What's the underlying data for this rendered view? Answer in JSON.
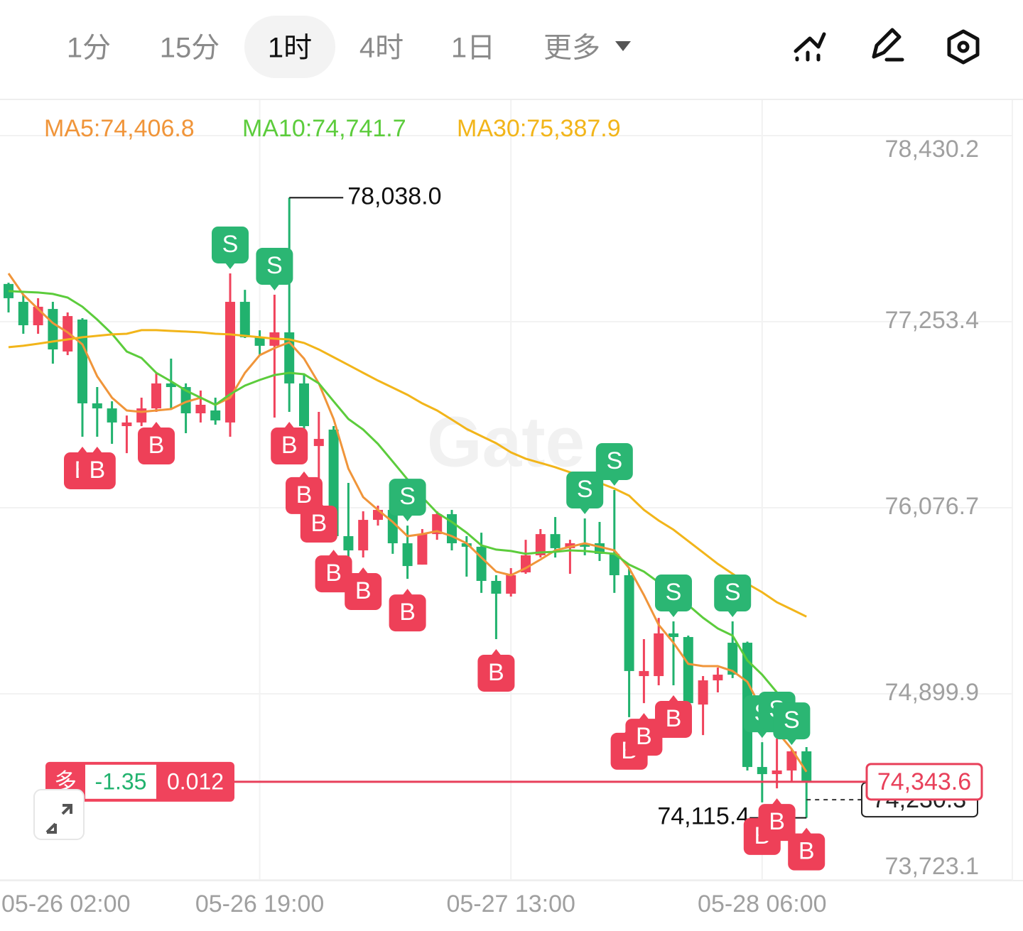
{
  "tabs": [
    "1分",
    "15分",
    "1时",
    "4时",
    "1日",
    "更多"
  ],
  "active_tab": 2,
  "chart_data": {
    "type": "candlestick",
    "categories": [
      "05-26 02:00",
      null,
      null,
      null,
      null,
      null,
      null,
      null,
      null,
      null,
      null,
      null,
      null,
      null,
      null,
      null,
      null,
      "05-26 19:00",
      null,
      null,
      null,
      null,
      null,
      null,
      null,
      null,
      null,
      null,
      null,
      null,
      null,
      null,
      null,
      null,
      "05-27 13:00",
      null,
      null,
      null,
      null,
      null,
      null,
      null,
      null,
      null,
      null,
      null,
      null,
      null,
      null,
      null,
      null,
      "05-28 06:00",
      null,
      null,
      null
    ],
    "open": [
      77492,
      77379,
      77231,
      77334,
      77065,
      77267,
      76737,
      76705,
      76593,
      76616,
      76705,
      76863,
      76840,
      76674,
      76692,
      76616,
      77379,
      77155,
      77101,
      77186,
      76863,
      76467,
      76571,
      75897,
      75807,
      76000,
      76063,
      75852,
      75717,
      75910,
      76036,
      75852,
      75830,
      75614,
      75533,
      75668,
      75776,
      75910,
      75821,
      75852,
      75852,
      75785,
      75650,
      75012,
      75012,
      75282,
      75259,
      74832,
      74985,
      75223,
      75223,
      74437,
      74392,
      74415,
      74536
    ],
    "high": [
      77500,
      77424,
      77402,
      77379,
      77312,
      77276,
      76840,
      76750,
      76660,
      76773,
      76930,
      77020,
      76863,
      76818,
      76773,
      77559,
      77455,
      77199,
      77424,
      78038.0,
      76916,
      76683,
      76593,
      76234,
      76054,
      76090,
      76098,
      75964,
      75942,
      76054,
      76063,
      75897,
      75919,
      75650,
      75695,
      75874,
      75942,
      76018,
      75874,
      76009,
      75987,
      76189,
      75695,
      75246,
      75380,
      75358,
      75268,
      75012,
      75066,
      75358,
      75230,
      74594,
      74617,
      74549,
      74563
    ],
    "low": [
      77312,
      77177,
      77177,
      76988,
      77042,
      76526,
      76526,
      76481,
      76422,
      76593,
      76683,
      76705,
      76548,
      76616,
      76602,
      76526,
      77150,
      77042,
      76647,
      76683,
      76369,
      76189,
      75874,
      75740,
      75762,
      75964,
      75785,
      75627,
      75717,
      75874,
      75807,
      75641,
      75538,
      75246,
      75515,
      75659,
      75762,
      75762,
      75659,
      75776,
      75740,
      75538,
      74752,
      74841,
      74954,
      74954,
      74835,
      74639,
      74909,
      74999,
      74415,
      74213,
      74302,
      74347,
      74115.4
    ],
    "close": [
      77402,
      77231,
      77348,
      77078,
      77289,
      76737,
      76705,
      76616,
      76616,
      76705,
      76863,
      76840,
      76674,
      76728,
      76629,
      77379,
      77155,
      77101,
      77186,
      76863,
      76593,
      76512,
      75897,
      75807,
      76000,
      76063,
      75852,
      75708,
      75910,
      76036,
      75852,
      75830,
      75614,
      75533,
      75650,
      75776,
      75910,
      75821,
      75852,
      75830,
      75785,
      75650,
      75044,
      75044,
      75282,
      75259,
      74841,
      74985,
      75021,
      75021,
      74437,
      74392,
      74415,
      74536,
      74343.6
    ],
    "high_labels": [
      null,
      null,
      null,
      null,
      null,
      null,
      null,
      null,
      null,
      null,
      null,
      null,
      null,
      null,
      null,
      null,
      null,
      null,
      null,
      "78,038.0",
      null,
      null,
      null,
      null,
      null,
      null,
      null,
      null,
      null,
      null,
      null,
      null,
      null,
      null,
      null,
      null,
      null,
      null,
      null,
      null,
      null,
      null,
      null,
      null,
      null,
      null,
      null,
      null,
      null,
      null,
      null,
      null,
      null,
      null,
      null
    ],
    "low_labels": [
      null,
      null,
      null,
      null,
      null,
      null,
      null,
      null,
      null,
      null,
      null,
      null,
      null,
      null,
      null,
      null,
      null,
      null,
      null,
      null,
      null,
      null,
      null,
      null,
      null,
      null,
      null,
      null,
      null,
      null,
      null,
      null,
      null,
      null,
      null,
      null,
      null,
      null,
      null,
      null,
      null,
      null,
      null,
      null,
      null,
      null,
      null,
      null,
      null,
      null,
      null,
      null,
      null,
      null,
      "74,115.4"
    ],
    "close_labels": [
      null,
      null,
      null,
      null,
      null,
      null,
      null,
      null,
      null,
      null,
      null,
      null,
      null,
      null,
      null,
      null,
      null,
      null,
      null,
      null,
      null,
      null,
      null,
      null,
      null,
      null,
      null,
      null,
      null,
      null,
      null,
      null,
      null,
      null,
      null,
      null,
      null,
      null,
      null,
      null,
      null,
      null,
      null,
      null,
      null,
      null,
      null,
      null,
      null,
      null,
      null,
      null,
      null,
      null,
      "74,343.6"
    ],
    "up_color": "#f0435c",
    "down_color": "#21b26e",
    "series": [
      {
        "name": "MA5:74,406.8",
        "color": "#f0953a",
        "values": [
          77559,
          77424,
          77334,
          77245,
          77186,
          77110,
          76908,
          76773,
          76692,
          76683,
          76692,
          76701,
          76746,
          76773,
          76728,
          76773,
          76930,
          77042,
          77087,
          77123,
          77020,
          76863,
          76638,
          76324,
          76144,
          76063,
          75987,
          75897,
          75910,
          75929,
          75897,
          75852,
          75762,
          75673,
          75650,
          75695,
          75749,
          75807,
          75830,
          75852,
          75830,
          75807,
          75695,
          75524,
          75336,
          75223,
          75089,
          75075,
          75075,
          75044,
          74976,
          74797,
          74662,
          74550,
          74406.8
        ]
      },
      {
        "name": "MA10:74,741.7",
        "color": "#5ccc3c",
        "values": [
          77447,
          77442,
          77438,
          77429,
          77406,
          77348,
          77267,
          77177,
          77065,
          77024,
          76930,
          76876,
          76818,
          76773,
          76728,
          76795,
          76849,
          76885,
          76916,
          76930,
          76921,
          76863,
          76750,
          76638,
          76571,
          76481,
          76369,
          76256,
          76144,
          76045,
          75987,
          75919,
          75839,
          75812,
          75803,
          75785,
          75794,
          75798,
          75807,
          75803,
          75794,
          75785,
          75717,
          75673,
          75605,
          75524,
          75461,
          75381,
          75313,
          75268,
          75111,
          75021,
          74909,
          74819,
          74741.7
        ]
      },
      {
        "name": "MA30:75,387.9",
        "color": "#f2b51a",
        "values": [
          77092,
          77101,
          77114,
          77128,
          77141,
          77155,
          77164,
          77173,
          77177,
          77200,
          77200,
          77195,
          77191,
          77186,
          77177,
          77173,
          77164,
          77155,
          77146,
          77141,
          77119,
          77078,
          77029,
          76980,
          76930,
          76881,
          76836,
          76791,
          76737,
          76692,
          76634,
          76575,
          76530,
          76485,
          76427,
          76387,
          76360,
          76333,
          76301,
          76270,
          76234,
          76198,
          76153,
          76063,
          75996,
          75938,
          75866,
          75794,
          75722,
          75659,
          75596,
          75542,
          75479,
          75434,
          75387.9
        ]
      }
    ],
    "ylim": [
      73723.1,
      78430.2
    ],
    "yticks": [
      {
        "value": 73723.1,
        "label": "73,723.1"
      },
      {
        "value": 74899.9,
        "label": "74,899.9"
      },
      {
        "value": 76076.7,
        "label": "76,076.7"
      },
      {
        "value": 77253.4,
        "label": "77,253.4"
      },
      {
        "value": 78430.2,
        "label": "78,430.2"
      }
    ],
    "grid": true,
    "signals": [
      null,
      null,
      null,
      null,
      null,
      {
        "below": "B"
      },
      {
        "below": "B"
      },
      null,
      null,
      null,
      {
        "below": "B"
      },
      null,
      null,
      null,
      null,
      {
        "above": "S"
      },
      null,
      null,
      {
        "above": "S"
      },
      {
        "below": "B"
      },
      {
        "below": "B"
      },
      {
        "below": "B"
      },
      {
        "below": "B"
      },
      null,
      {
        "below": "B"
      },
      null,
      null,
      {
        "above": "S",
        "below": "B"
      },
      null,
      null,
      null,
      null,
      null,
      {
        "below": "B"
      },
      null,
      null,
      null,
      null,
      null,
      {
        "above": "S"
      },
      null,
      {
        "above": "S"
      },
      {
        "below": "B"
      },
      {
        "below": "B"
      },
      null,
      {
        "above": "S",
        "below": "B"
      },
      null,
      null,
      null,
      {
        "above": "S"
      },
      null,
      {
        "above": "S",
        "below": "B"
      },
      {
        "above": "S",
        "below": "B"
      },
      {
        "above": "S"
      },
      {
        "below": "B"
      }
    ],
    "sell_color": "#2bb673",
    "buy_color": "#ee4058",
    "mark_price": {
      "value": 74230.3,
      "label": "74,230.3"
    },
    "position": {
      "side": "多",
      "pnl": -1.35,
      "size": 0.012
    },
    "watermark": "Gate"
  }
}
